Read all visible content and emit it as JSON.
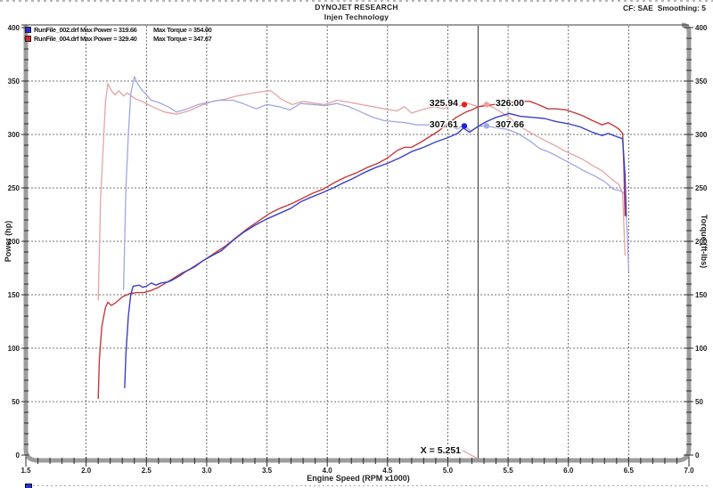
{
  "header": {
    "title": "DYNOJET RESEARCH",
    "subtitle": "Injen Technology",
    "right": "CF: SAE  Smoothing: 5"
  },
  "legend": [
    {
      "color": "#2a2fd4",
      "main": "RunFile_002.drf Max Power = 319.66",
      "torque": "Max Torque = 354.00"
    },
    {
      "color": "#d42a2a",
      "main": "RunFile_004.drf Max Power = 329.40",
      "torque": "Max Torque = 347.67"
    }
  ],
  "bottom_partial": {
    "swatch_color": "#2a2fd4"
  },
  "chart_data": {
    "type": "line",
    "title": "DYNOJET RESEARCH",
    "subtitle": "Injen Technology",
    "xlabel": "Engine Speed (RPM x1000)",
    "ylabel_left": "Power (hp)",
    "ylabel_right": "Torque (ft-lbs)",
    "x_range": [
      1.5,
      7.0
    ],
    "x_major": 0.5,
    "x_minor": 0.1,
    "y_range": [
      0,
      400
    ],
    "y_major": 50,
    "y_minor": 10,
    "grid": "dashed",
    "cursor": {
      "x": 5.251,
      "label": "X = 5.251"
    },
    "markers": [
      {
        "rpm": 5.137,
        "value": 328,
        "color": "#e81f1f",
        "label": "325.94"
      },
      {
        "rpm": 5.322,
        "value": 328,
        "color": "#f29e9e",
        "label": "326.00"
      },
      {
        "rpm": 5.137,
        "value": 308,
        "color": "#2020e0",
        "label": "307.61"
      },
      {
        "rpm": 5.322,
        "value": 308,
        "color": "#9fa8ef",
        "label": "307.66"
      }
    ],
    "series": [
      {
        "name": "RunFile_004.drf Torque",
        "color": "#e4a4a4",
        "width": 1.3,
        "points": [
          [
            2.1,
            145
          ],
          [
            2.11,
            190
          ],
          [
            2.12,
            240
          ],
          [
            2.14,
            285
          ],
          [
            2.16,
            330
          ],
          [
            2.18,
            347.7
          ],
          [
            2.21,
            341
          ],
          [
            2.24,
            337
          ],
          [
            2.27,
            341
          ],
          [
            2.31,
            336
          ],
          [
            2.34,
            339
          ],
          [
            2.4,
            334
          ],
          [
            2.48,
            330
          ],
          [
            2.55,
            326
          ],
          [
            2.65,
            321
          ],
          [
            2.75,
            319
          ],
          [
            2.85,
            322
          ],
          [
            2.95,
            327
          ],
          [
            3.05,
            331
          ],
          [
            3.15,
            333
          ],
          [
            3.25,
            336
          ],
          [
            3.35,
            338
          ],
          [
            3.45,
            340
          ],
          [
            3.53,
            341
          ],
          [
            3.62,
            333
          ],
          [
            3.71,
            328
          ],
          [
            3.8,
            331
          ],
          [
            3.9,
            329
          ],
          [
            3.98,
            328
          ],
          [
            4.08,
            332
          ],
          [
            4.19,
            330
          ],
          [
            4.28,
            328
          ],
          [
            4.38,
            326
          ],
          [
            4.47,
            324
          ],
          [
            4.58,
            322
          ],
          [
            4.64,
            326
          ],
          [
            4.7,
            320
          ],
          [
            4.78,
            323
          ],
          [
            4.89,
            326
          ],
          [
            4.97,
            324
          ],
          [
            5.04,
            328
          ],
          [
            5.1,
            327
          ],
          [
            5.17,
            329
          ],
          [
            5.251,
            326.0
          ],
          [
            5.32,
            328
          ],
          [
            5.38,
            325
          ],
          [
            5.44,
            321
          ],
          [
            5.51,
            316
          ],
          [
            5.58,
            309
          ],
          [
            5.68,
            302
          ],
          [
            5.76,
            297
          ],
          [
            5.83,
            293
          ],
          [
            5.9,
            289
          ],
          [
            5.98,
            284
          ],
          [
            6.06,
            280
          ],
          [
            6.13,
            276
          ],
          [
            6.2,
            271
          ],
          [
            6.28,
            266
          ],
          [
            6.35,
            259
          ],
          [
            6.42,
            253
          ],
          [
            6.45,
            245
          ],
          [
            6.46,
            215
          ],
          [
            6.47,
            187
          ]
        ]
      },
      {
        "name": "RunFile_002.drf Torque",
        "color": "#a2a6e0",
        "width": 1.3,
        "points": [
          [
            2.31,
            155
          ],
          [
            2.32,
            200
          ],
          [
            2.33,
            250
          ],
          [
            2.35,
            300
          ],
          [
            2.37,
            338
          ],
          [
            2.4,
            354
          ],
          [
            2.43,
            347
          ],
          [
            2.46,
            342
          ],
          [
            2.5,
            337
          ],
          [
            2.54,
            332
          ],
          [
            2.6,
            330
          ],
          [
            2.68,
            326
          ],
          [
            2.75,
            321
          ],
          [
            2.84,
            324
          ],
          [
            2.93,
            328
          ],
          [
            3.01,
            330
          ],
          [
            3.1,
            332
          ],
          [
            3.22,
            332
          ],
          [
            3.3,
            329
          ],
          [
            3.41,
            324
          ],
          [
            3.5,
            328
          ],
          [
            3.6,
            326
          ],
          [
            3.69,
            323
          ],
          [
            3.78,
            329
          ],
          [
            3.88,
            328
          ],
          [
            3.98,
            327
          ],
          [
            4.08,
            329
          ],
          [
            4.18,
            326
          ],
          [
            4.28,
            321
          ],
          [
            4.38,
            316
          ],
          [
            4.47,
            313
          ],
          [
            4.56,
            312
          ],
          [
            4.65,
            311
          ],
          [
            4.74,
            309
          ],
          [
            4.83,
            309
          ],
          [
            4.93,
            310
          ],
          [
            5.0,
            308
          ],
          [
            5.08,
            305
          ],
          [
            5.13,
            309
          ],
          [
            5.19,
            303
          ],
          [
            5.251,
            307.7
          ],
          [
            5.32,
            308
          ],
          [
            5.41,
            306
          ],
          [
            5.49,
            305
          ],
          [
            5.58,
            301
          ],
          [
            5.68,
            294
          ],
          [
            5.76,
            287
          ],
          [
            5.85,
            283
          ],
          [
            5.95,
            277
          ],
          [
            6.05,
            271
          ],
          [
            6.13,
            266
          ],
          [
            6.22,
            261
          ],
          [
            6.3,
            256
          ],
          [
            6.37,
            249
          ],
          [
            6.44,
            247
          ],
          [
            6.47,
            244
          ],
          [
            6.49,
            205
          ],
          [
            6.5,
            172
          ]
        ]
      },
      {
        "name": "RunFile_004.drf Power",
        "color": "#c23a3a",
        "width": 1.4,
        "points": [
          [
            2.1,
            53
          ],
          [
            2.11,
            90
          ],
          [
            2.13,
            120
          ],
          [
            2.16,
            138
          ],
          [
            2.18,
            143
          ],
          [
            2.21,
            140
          ],
          [
            2.25,
            143
          ],
          [
            2.3,
            148
          ],
          [
            2.36,
            151
          ],
          [
            2.42,
            152
          ],
          [
            2.48,
            152
          ],
          [
            2.54,
            154
          ],
          [
            2.6,
            157
          ],
          [
            2.66,
            161
          ],
          [
            2.72,
            165
          ],
          [
            2.79,
            170
          ],
          [
            2.86,
            174
          ],
          [
            2.93,
            179
          ],
          [
            3.0,
            184
          ],
          [
            3.08,
            190
          ],
          [
            3.16,
            196
          ],
          [
            3.25,
            204
          ],
          [
            3.34,
            212
          ],
          [
            3.43,
            219
          ],
          [
            3.52,
            226
          ],
          [
            3.61,
            231
          ],
          [
            3.7,
            235
          ],
          [
            3.79,
            240
          ],
          [
            3.88,
            245
          ],
          [
            3.97,
            249
          ],
          [
            4.06,
            255
          ],
          [
            4.15,
            260
          ],
          [
            4.24,
            264
          ],
          [
            4.33,
            269
          ],
          [
            4.42,
            273
          ],
          [
            4.5,
            278
          ],
          [
            4.58,
            285
          ],
          [
            4.64,
            288
          ],
          [
            4.7,
            288
          ],
          [
            4.78,
            293
          ],
          [
            4.85,
            298
          ],
          [
            4.92,
            303
          ],
          [
            5.0,
            310
          ],
          [
            5.07,
            316
          ],
          [
            5.15,
            321
          ],
          [
            5.2,
            323
          ],
          [
            5.251,
            325.9
          ],
          [
            5.32,
            327
          ],
          [
            5.38,
            328
          ],
          [
            5.45,
            330
          ],
          [
            5.52,
            330
          ],
          [
            5.6,
            331
          ],
          [
            5.68,
            331
          ],
          [
            5.75,
            328
          ],
          [
            5.83,
            324
          ],
          [
            5.9,
            324
          ],
          [
            5.98,
            323
          ],
          [
            6.06,
            320
          ],
          [
            6.13,
            317
          ],
          [
            6.2,
            313
          ],
          [
            6.28,
            309
          ],
          [
            6.33,
            311
          ],
          [
            6.38,
            308
          ],
          [
            6.42,
            305
          ],
          [
            6.45,
            301
          ],
          [
            6.46,
            270
          ],
          [
            6.47,
            224
          ]
        ]
      },
      {
        "name": "RunFile_002.drf Power",
        "color": "#3c40c2",
        "width": 1.4,
        "points": [
          [
            2.32,
            63
          ],
          [
            2.33,
            95
          ],
          [
            2.35,
            130
          ],
          [
            2.37,
            150
          ],
          [
            2.39,
            158
          ],
          [
            2.44,
            159
          ],
          [
            2.47,
            157
          ],
          [
            2.5,
            158
          ],
          [
            2.54,
            161
          ],
          [
            2.58,
            159
          ],
          [
            2.62,
            161
          ],
          [
            2.68,
            162
          ],
          [
            2.72,
            164
          ],
          [
            2.78,
            168
          ],
          [
            2.83,
            172
          ],
          [
            2.9,
            176
          ],
          [
            2.97,
            182
          ],
          [
            3.05,
            187
          ],
          [
            3.12,
            191
          ],
          [
            3.22,
            201
          ],
          [
            3.3,
            208
          ],
          [
            3.4,
            215
          ],
          [
            3.5,
            221
          ],
          [
            3.6,
            226
          ],
          [
            3.7,
            231
          ],
          [
            3.78,
            237
          ],
          [
            3.86,
            241
          ],
          [
            3.95,
            245
          ],
          [
            4.05,
            250
          ],
          [
            4.12,
            254
          ],
          [
            4.2,
            258
          ],
          [
            4.3,
            264
          ],
          [
            4.4,
            269
          ],
          [
            4.5,
            273
          ],
          [
            4.6,
            278
          ],
          [
            4.7,
            284
          ],
          [
            4.8,
            288
          ],
          [
            4.9,
            293
          ],
          [
            5.0,
            297
          ],
          [
            5.08,
            301
          ],
          [
            5.13,
            306
          ],
          [
            5.18,
            302
          ],
          [
            5.251,
            307.6
          ],
          [
            5.32,
            312
          ],
          [
            5.4,
            316
          ],
          [
            5.51,
            319.7
          ],
          [
            5.6,
            317
          ],
          [
            5.7,
            316
          ],
          [
            5.8,
            315
          ],
          [
            5.9,
            312
          ],
          [
            6.0,
            310
          ],
          [
            6.1,
            307
          ],
          [
            6.2,
            302
          ],
          [
            6.28,
            299
          ],
          [
            6.33,
            301
          ],
          [
            6.4,
            298
          ],
          [
            6.45,
            296
          ],
          [
            6.47,
            262
          ],
          [
            6.48,
            224
          ]
        ]
      }
    ]
  }
}
